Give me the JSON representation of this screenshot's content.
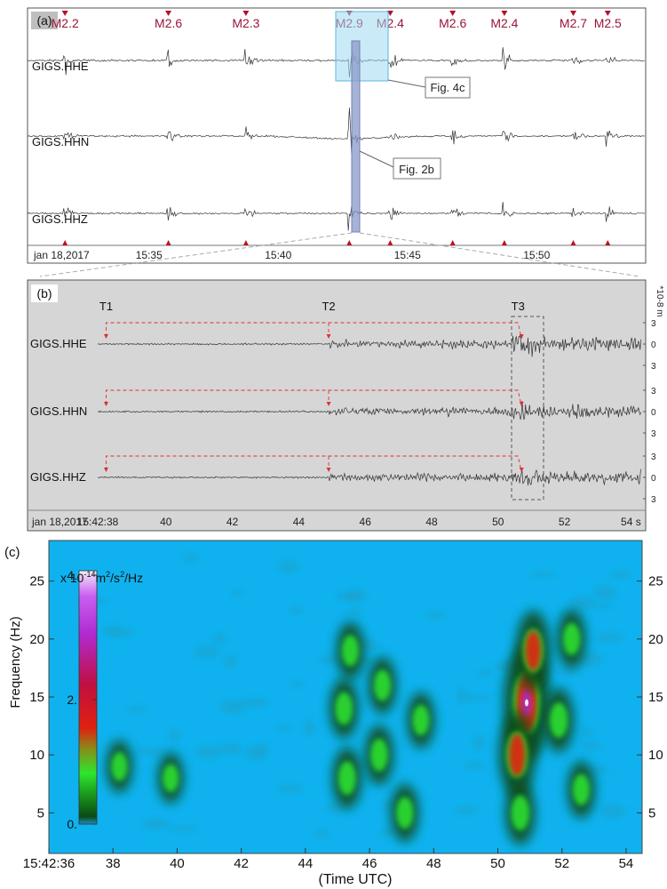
{
  "chart_data": [
    {
      "type": "line",
      "panel_label": "(a)",
      "date_label": "jan 18,2017",
      "x_ticks": [
        "15:35",
        "15:40",
        "15:45",
        "15:50"
      ],
      "channels": [
        "GIGS.HHE",
        "GIGS.HHN",
        "GIGS.HHZ"
      ],
      "events": [
        {
          "time": "15:31:45",
          "label": "M2.2"
        },
        {
          "time": "15:35:45",
          "label": "M2.6"
        },
        {
          "time": "15:38:45",
          "label": "M2.3"
        },
        {
          "time": "15:42:45",
          "label": "M2.9"
        },
        {
          "time": "15:44:20",
          "label": "M2.4"
        },
        {
          "time": "15:46:45",
          "label": "M2.6"
        },
        {
          "time": "15:48:45",
          "label": "M2.4"
        },
        {
          "time": "15:51:25",
          "label": "M2.7"
        },
        {
          "time": "15:52:45",
          "label": "M2.5"
        }
      ],
      "callouts": [
        "Fig. 4c",
        "Fig. 2b"
      ]
    },
    {
      "type": "line",
      "panel_label": "(b)",
      "date_label": "jan 18,2017",
      "start_label": "15:42:38",
      "x_ticks": [
        "40",
        "42",
        "44",
        "46",
        "48",
        "50",
        "52",
        "54 s"
      ],
      "unit_label": "*10-8 m",
      "amplitude_ticks": [
        "3",
        "0",
        "3"
      ],
      "channels": [
        "GIGS.HHE",
        "GIGS.HHN",
        "GIGS.HHZ"
      ],
      "phases": [
        {
          "label": "T1",
          "time_s": 38.2
        },
        {
          "label": "T2",
          "time_s": 44.9
        },
        {
          "label": "T3",
          "time_s": 50.6
        }
      ]
    },
    {
      "type": "heatmap",
      "panel_label": "(c)",
      "xlabel": "(Time UTC)",
      "ylabel": "Frequency (Hz)",
      "x_ticks": [
        "15:42:36",
        "38",
        "40",
        "42",
        "44",
        "46",
        "48",
        "50",
        "52",
        "54"
      ],
      "y_ticks": [
        "5",
        "10",
        "15",
        "20",
        "25"
      ],
      "xlim": [
        36,
        54.5
      ],
      "ylim": [
        1.5,
        28.5
      ],
      "colorbar": {
        "label_prefix": "x 10",
        "label_exp": "-14",
        "label_mid": "m",
        "label_exp2": "2",
        "label_mid2": "/s",
        "label_exp3": "2",
        "label_end": "/Hz",
        "ticks": [
          "4.",
          "2.",
          "0."
        ],
        "range": [
          0,
          4
        ]
      },
      "energy_blobs": [
        {
          "t": 45.3,
          "f": 8,
          "a": 0.85
        },
        {
          "t": 45.2,
          "f": 14,
          "a": 0.75
        },
        {
          "t": 45.4,
          "f": 19,
          "a": 0.6
        },
        {
          "t": 46.3,
          "f": 10,
          "a": 0.75
        },
        {
          "t": 46.4,
          "f": 16,
          "a": 0.6
        },
        {
          "t": 47.1,
          "f": 5,
          "a": 0.65
        },
        {
          "t": 47.6,
          "f": 13,
          "a": 0.55
        },
        {
          "t": 50.9,
          "f": 14.5,
          "a": 4.0
        },
        {
          "t": 50.6,
          "f": 10,
          "a": 2.2
        },
        {
          "t": 51.1,
          "f": 19,
          "a": 1.9
        },
        {
          "t": 50.7,
          "f": 5,
          "a": 1.0
        },
        {
          "t": 51.9,
          "f": 13,
          "a": 1.0
        },
        {
          "t": 52.3,
          "f": 20,
          "a": 0.7
        },
        {
          "t": 52.6,
          "f": 7,
          "a": 0.6
        },
        {
          "t": 38.2,
          "f": 9,
          "a": 0.35
        },
        {
          "t": 39.8,
          "f": 8,
          "a": 0.25
        }
      ]
    }
  ]
}
